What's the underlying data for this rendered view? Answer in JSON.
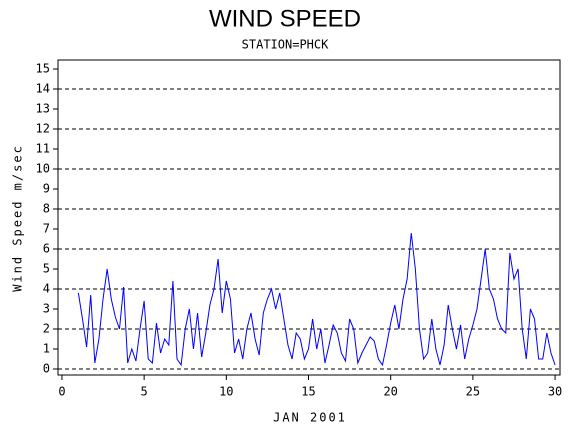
{
  "chart_data": {
    "type": "line",
    "title": "WIND SPEED",
    "subtitle": "STATION=PHCK",
    "xlabel": "JAN 2001",
    "ylabel": "Wind Speed m/sec",
    "color": "#0000ff",
    "grid": true,
    "xlim": [
      -0.24,
      30.3
    ],
    "ylim": [
      -0.3,
      15.45
    ],
    "xticks": [
      0,
      5,
      10,
      15,
      20,
      25,
      30
    ],
    "yticks": [
      0,
      1,
      2,
      3,
      4,
      5,
      6,
      7,
      8,
      9,
      10,
      11,
      12,
      13,
      14,
      15
    ],
    "x": [
      1,
      1.25,
      1.5,
      1.75,
      2,
      2.25,
      2.5,
      2.75,
      3,
      3.25,
      3.5,
      3.75,
      4,
      4.25,
      4.5,
      4.75,
      5,
      5.25,
      5.5,
      5.75,
      6,
      6.25,
      6.5,
      6.75,
      7,
      7.25,
      7.5,
      7.75,
      8,
      8.25,
      8.5,
      8.75,
      9,
      9.25,
      9.5,
      9.75,
      10,
      10.25,
      10.5,
      10.75,
      11,
      11.25,
      11.5,
      11.75,
      12,
      12.25,
      12.5,
      12.75,
      13,
      13.25,
      13.5,
      13.75,
      14,
      14.25,
      14.5,
      14.75,
      15,
      15.25,
      15.5,
      15.75,
      16,
      16.25,
      16.5,
      16.75,
      17,
      17.25,
      17.5,
      17.75,
      18,
      18.25,
      18.5,
      18.75,
      19,
      19.25,
      19.5,
      19.75,
      20,
      20.25,
      20.5,
      20.75,
      21,
      21.25,
      21.5,
      21.75,
      22,
      22.25,
      22.5,
      22.75,
      23,
      23.25,
      23.5,
      23.75,
      24,
      24.25,
      24.5,
      24.75,
      25,
      25.25,
      25.5,
      25.75,
      26,
      26.25,
      26.5,
      26.75,
      27,
      27.25,
      27.5,
      27.75,
      28,
      28.25,
      28.5,
      28.75,
      29,
      29.25,
      29.5,
      29.75,
      30
    ],
    "values": [
      3.8,
      2.5,
      1.1,
      3.7,
      0.3,
      1.5,
      3.5,
      5.0,
      3.5,
      2.6,
      2.0,
      4.1,
      0.3,
      1.0,
      0.4,
      2.0,
      3.4,
      0.5,
      0.3,
      2.3,
      0.8,
      1.5,
      1.2,
      4.4,
      0.5,
      0.2,
      2.0,
      3.0,
      1.0,
      2.8,
      0.6,
      1.8,
      3.2,
      4.0,
      5.5,
      2.8,
      4.4,
      3.5,
      0.8,
      1.5,
      0.5,
      2.0,
      2.8,
      1.5,
      0.7,
      2.8,
      3.5,
      4.0,
      3.0,
      3.8,
      2.5,
      1.2,
      0.5,
      1.8,
      1.5,
      0.5,
      1.0,
      2.5,
      1.0,
      2.0,
      0.3,
      1.2,
      2.2,
      1.8,
      0.8,
      0.4,
      2.5,
      2.0,
      0.3,
      0.8,
      1.2,
      1.6,
      1.4,
      0.5,
      0.2,
      1.2,
      2.3,
      3.2,
      2.0,
      3.5,
      4.5,
      6.8,
      5.0,
      2.0,
      0.5,
      0.8,
      2.5,
      1.0,
      0.2,
      1.2,
      3.2,
      2.0,
      1.0,
      2.2,
      0.5,
      1.5,
      2.2,
      3.0,
      4.5,
      6.0,
      4.0,
      3.5,
      2.5,
      2.0,
      1.8,
      5.8,
      4.5,
      5.0,
      2.0,
      0.5,
      3.0,
      2.5,
      0.5,
      0.5,
      1.8,
      0.8,
      0.2
    ]
  }
}
